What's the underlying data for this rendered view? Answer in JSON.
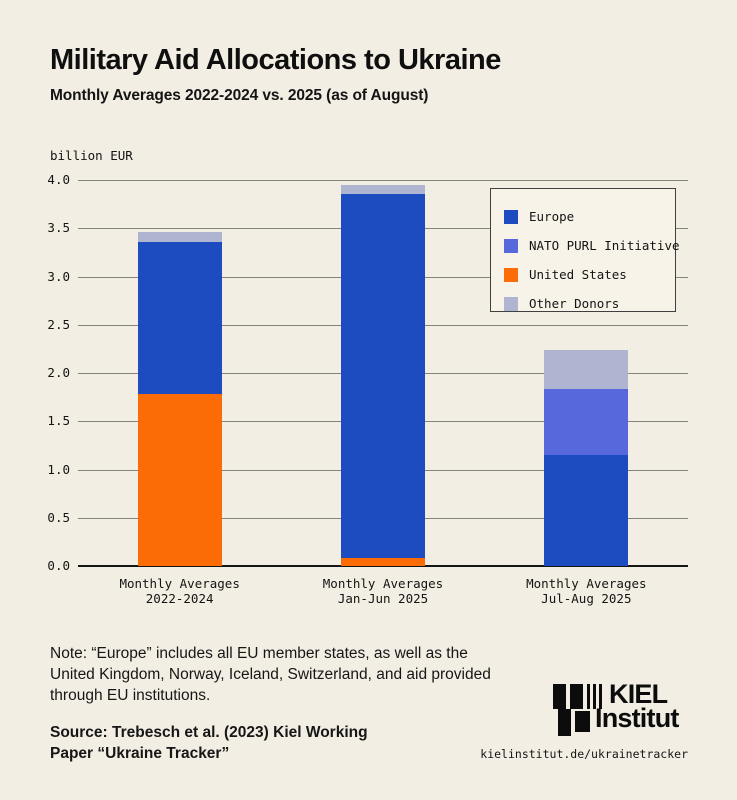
{
  "header": {
    "title": "Military Aid Allocations to Ukraine",
    "subtitle": "Monthly Averages 2022-2024 vs. 2025 (as of August)"
  },
  "chart_data": {
    "type": "bar",
    "stacked": true,
    "title": "Military Aid Allocations to Ukraine",
    "ylabel": "billion EUR",
    "ylim": [
      0,
      4
    ],
    "yticks": [
      "0.0",
      "0.5",
      "1.0",
      "1.5",
      "2.0",
      "2.5",
      "3.0",
      "3.5",
      "4.0"
    ],
    "grid": true,
    "categories": [
      {
        "line1": "Monthly Averages",
        "line2": "2022-2024"
      },
      {
        "line1": "Monthly Averages",
        "line2": "Jan-Jun 2025"
      },
      {
        "line1": "Monthly Averages",
        "line2": "Jul-Aug 2025"
      }
    ],
    "series": [
      {
        "name": "United States",
        "color": "#fb6c06",
        "values": [
          1.78,
          0.08,
          0
        ]
      },
      {
        "name": "Europe",
        "color": "#1d4bc0",
        "values": [
          1.58,
          3.77,
          1.15
        ]
      },
      {
        "name": "NATO PURL Initiative",
        "color": "#5668dc",
        "values": [
          0,
          0,
          0.68
        ]
      },
      {
        "name": "Other Donors",
        "color": "#afb4d1",
        "values": [
          0.1,
          0.1,
          0.41
        ]
      }
    ],
    "legend": {
      "position": "top-right",
      "items": [
        {
          "label": "Europe",
          "color": "#1d4bc0"
        },
        {
          "label": "NATO PURL Initiative",
          "color": "#5668dc"
        },
        {
          "label": "United States",
          "color": "#fb6c06"
        },
        {
          "label": "Other Donors",
          "color": "#afb4d1"
        }
      ]
    }
  },
  "footer": {
    "note_line1": "Note: “Europe” includes all EU member states, as well as the",
    "note_line2": "United Kingdom, Norway, Iceland, Switzerland, and aid provided",
    "note_line3": "through EU institutions.",
    "source_line1": "Source: Trebesch et al. (2023) Kiel Working",
    "source_line2": "Paper “Ukraine Tracker”",
    "logo_line1": "KIEL",
    "logo_line2": "Institut",
    "url": "kielinstitut.de/ukrainetracker"
  }
}
